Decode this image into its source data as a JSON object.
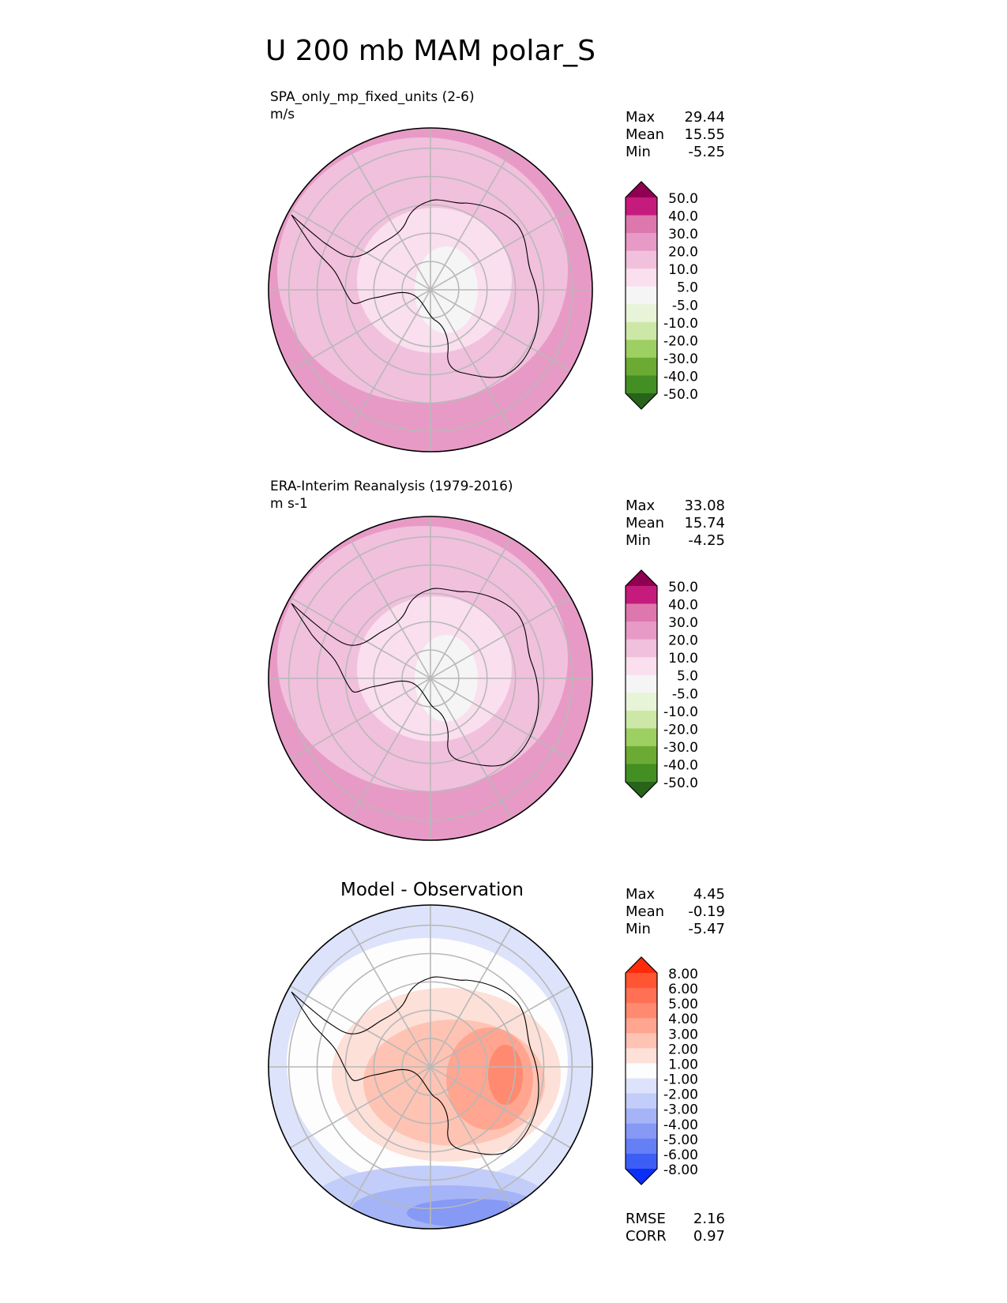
{
  "title": "U 200 mb MAM polar_S",
  "chart_data": [
    {
      "type": "polar-contour-map",
      "panel": "model",
      "label": "SPA_only_mp_fixed_units (2-6)",
      "units": "m/s",
      "title": "",
      "stats": [
        {
          "name": "Max",
          "value": "29.44"
        },
        {
          "name": "Mean",
          "value": "15.55"
        },
        {
          "name": "Min",
          "value": "-5.25"
        }
      ],
      "colorbar": {
        "levels": [
          "50.0",
          "40.0",
          "30.0",
          "20.0",
          "10.0",
          "5.0",
          "-5.0",
          "-10.0",
          "-20.0",
          "-30.0",
          "-40.0",
          "-50.0"
        ],
        "colors": [
          "#8e0152",
          "#c51b7d",
          "#de77ae",
          "#e89ac6",
          "#f1c0dd",
          "#fadfee",
          "#f5f5f5",
          "#e8f4d8",
          "#cde8a6",
          "#9dcf63",
          "#6bab34",
          "#448f24",
          "#276419"
        ]
      },
      "fields": [
        {
          "value": 25,
          "color": "#e89ac6",
          "shape": "outer"
        },
        {
          "value": 15,
          "color": "#f1c0dd",
          "shape": "mid"
        },
        {
          "value": 8,
          "color": "#fadfee",
          "shape": "inner"
        },
        {
          "value": 0,
          "color": "#f5f5f5",
          "shape": "core"
        }
      ]
    },
    {
      "type": "polar-contour-map",
      "panel": "observation",
      "label": "ERA-Interim Reanalysis (1979-2016)",
      "units": "m s-1",
      "title": "",
      "stats": [
        {
          "name": "Max",
          "value": "33.08"
        },
        {
          "name": "Mean",
          "value": "15.74"
        },
        {
          "name": "Min",
          "value": "-4.25"
        }
      ],
      "colorbar": {
        "levels": [
          "50.0",
          "40.0",
          "30.0",
          "20.0",
          "10.0",
          "5.0",
          "-5.0",
          "-10.0",
          "-20.0",
          "-30.0",
          "-40.0",
          "-50.0"
        ],
        "colors": [
          "#8e0152",
          "#c51b7d",
          "#de77ae",
          "#e89ac6",
          "#f1c0dd",
          "#fadfee",
          "#f5f5f5",
          "#e8f4d8",
          "#cde8a6",
          "#9dcf63",
          "#6bab34",
          "#448f24",
          "#276419"
        ]
      },
      "fields": [
        {
          "value": 32,
          "color": "#de77ae",
          "shape": "edge"
        },
        {
          "value": 25,
          "color": "#e89ac6",
          "shape": "outer"
        },
        {
          "value": 15,
          "color": "#f1c0dd",
          "shape": "mid"
        },
        {
          "value": 8,
          "color": "#fadfee",
          "shape": "inner"
        },
        {
          "value": 0,
          "color": "#f5f5f5",
          "shape": "core"
        }
      ]
    },
    {
      "type": "polar-contour-map",
      "panel": "difference",
      "label": "",
      "units": "",
      "title": "Model - Observation",
      "stats": [
        {
          "name": "Max",
          "value": "4.45"
        },
        {
          "name": "Mean",
          "value": "-0.19"
        },
        {
          "name": "Min",
          "value": "-5.47"
        }
      ],
      "metrics": [
        {
          "name": "RMSE",
          "value": "2.16"
        },
        {
          "name": "CORR",
          "value": "0.97"
        }
      ],
      "colorbar": {
        "levels": [
          "8.00",
          "6.00",
          "5.00",
          "4.00",
          "3.00",
          "2.00",
          "1.00",
          "-1.00",
          "-2.00",
          "-3.00",
          "-4.00",
          "-5.00",
          "-6.00",
          "-8.00"
        ],
        "colors": [
          "#ff2a0a",
          "#ff5533",
          "#ff7055",
          "#ff8a70",
          "#ffa590",
          "#ffc3b3",
          "#fde0d8",
          "#fdfdfd",
          "#dde3fb",
          "#c2cdf9",
          "#a5b4f7",
          "#8599f5",
          "#6580f4",
          "#3d5ef5",
          "#0a2ff8"
        ]
      },
      "fields": [
        {
          "value": -1.5,
          "color": "#dde3fb",
          "shape": "neg-ring"
        },
        {
          "value": -2.5,
          "color": "#c2cdf9",
          "shape": "neg-south"
        },
        {
          "value": -3.5,
          "color": "#a5b4f7",
          "shape": "neg-south2"
        },
        {
          "value": -4.5,
          "color": "#8599f5",
          "shape": "neg-south3"
        },
        {
          "value": 1.5,
          "color": "#fde0d8",
          "shape": "pos-a"
        },
        {
          "value": 2.5,
          "color": "#ffc3b3",
          "shape": "pos-b"
        },
        {
          "value": 3.5,
          "color": "#ffa590",
          "shape": "pos-c"
        },
        {
          "value": 4.3,
          "color": "#ff8a70",
          "shape": "pos-d"
        }
      ]
    }
  ]
}
